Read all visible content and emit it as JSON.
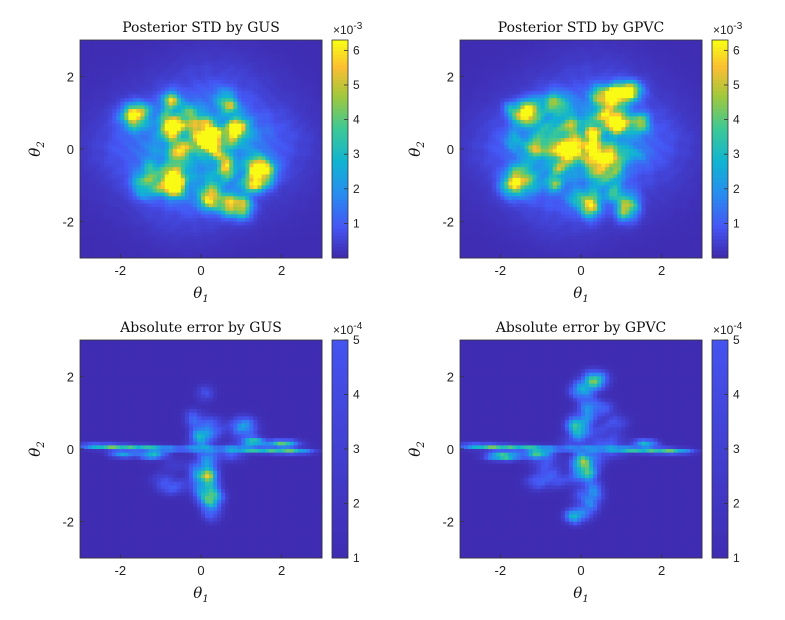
{
  "chart_data": [
    {
      "type": "heatmap",
      "title": "Posterior STD by GUS",
      "xlabel": "θ1",
      "ylabel": "θ2",
      "xlim": [
        -3,
        3
      ],
      "ylim": [
        -3,
        3
      ],
      "xticks": [
        "-2",
        "0",
        "2"
      ],
      "yticks": [
        "2",
        "0",
        "-2"
      ],
      "colorbar": {
        "multiplier": "×10",
        "exponent": "-3",
        "range": [
          0,
          6.3
        ],
        "ticks": [
          "6",
          "5",
          "4",
          "3",
          "2",
          "1"
        ]
      },
      "pattern": "std",
      "colormap": "parula"
    },
    {
      "type": "heatmap",
      "title": "Posterior STD by GPVC",
      "xlabel": "θ1",
      "ylabel": "θ2",
      "xlim": [
        -3,
        3
      ],
      "ylim": [
        -3,
        3
      ],
      "xticks": [
        "-2",
        "0",
        "2"
      ],
      "yticks": [
        "2",
        "0",
        "-2"
      ],
      "colorbar": {
        "multiplier": "×10",
        "exponent": "-3",
        "range": [
          0,
          6.3
        ],
        "ticks": [
          "6",
          "5",
          "4",
          "3",
          "2",
          "1"
        ]
      },
      "pattern": "std",
      "colormap": "parula"
    },
    {
      "type": "heatmap",
      "title": "Absolute error by GUS",
      "xlabel": "θ1",
      "ylabel": "θ2",
      "xlim": [
        -3,
        3
      ],
      "ylim": [
        -3,
        3
      ],
      "xticks": [
        "-2",
        "0",
        "2"
      ],
      "yticks": [
        "2",
        "0",
        "-2"
      ],
      "colorbar": {
        "multiplier": "×10",
        "exponent": "-4",
        "range": [
          1,
          5
        ],
        "ticks": [
          "5",
          "4",
          "3",
          "2",
          "1"
        ]
      },
      "pattern": "error_gus",
      "colormap": "parula"
    },
    {
      "type": "heatmap",
      "title": "Absolute error by GPVC",
      "xlabel": "θ1",
      "ylabel": "θ2",
      "xlim": [
        -3,
        3
      ],
      "ylim": [
        -3,
        3
      ],
      "xticks": [
        "-2",
        "0",
        "2"
      ],
      "yticks": [
        "2",
        "0",
        "-2"
      ],
      "colorbar": {
        "multiplier": "×10",
        "exponent": "-4",
        "range": [
          1,
          5
        ],
        "ticks": [
          "5",
          "4",
          "3",
          "2",
          "1"
        ]
      },
      "pattern": "error_gpvc",
      "colormap": "parula"
    }
  ]
}
